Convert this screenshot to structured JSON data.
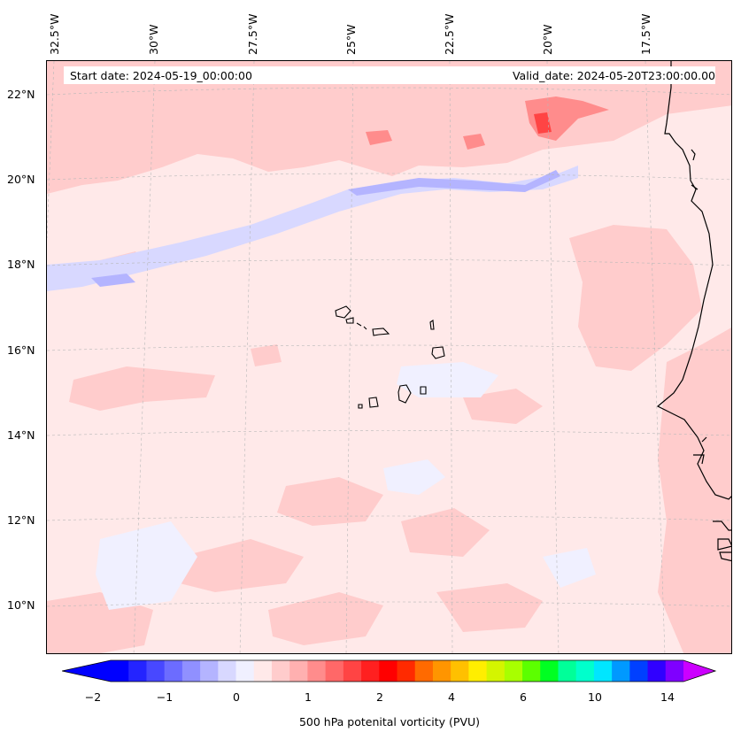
{
  "info": {
    "start_date": "Start date: 2024-05-19_00:00:00",
    "valid_date": "Valid_date: 2024-05-20T23:00:00.00"
  },
  "map": {
    "longitude_labels": [
      "32.5°W",
      "30°W",
      "27.5°W",
      "25°W",
      "22.5°W",
      "20°W",
      "17.5°W"
    ],
    "latitude_labels": [
      "22°N",
      "20°N",
      "18°N",
      "16°N",
      "14°N",
      "12°N",
      "10°N"
    ],
    "background_color": "#ffe9e9",
    "coastline_color": "#000000"
  },
  "colorbar": {
    "label": "500 hPa potenital vorticity (PVU)",
    "tick_labels": [
      "−2",
      "−1",
      "0",
      "1",
      "2",
      "4",
      "6",
      "10",
      "14"
    ],
    "colors": [
      "#0000ff",
      "#2424ff",
      "#4848ff",
      "#6c6cff",
      "#9090ff",
      "#b4b4ff",
      "#d8d8ff",
      "#f0f0ff",
      "#ffe9e9",
      "#ffcccc",
      "#ffb0b0",
      "#ff8c8c",
      "#ff6868",
      "#ff4444",
      "#ff2020",
      "#ff0000",
      "#ff2a00",
      "#ff6a00",
      "#ff9500",
      "#ffc000",
      "#ffee00",
      "#d4f500",
      "#a8ff00",
      "#5cff00",
      "#00ff22",
      "#00ff99",
      "#00ffcc",
      "#00e6ff",
      "#0099ff",
      "#0040ff",
      "#3000ff",
      "#7f00ff"
    ],
    "extend_min_color": "#0000ff",
    "extend_max_color": "#cc00ff"
  }
}
